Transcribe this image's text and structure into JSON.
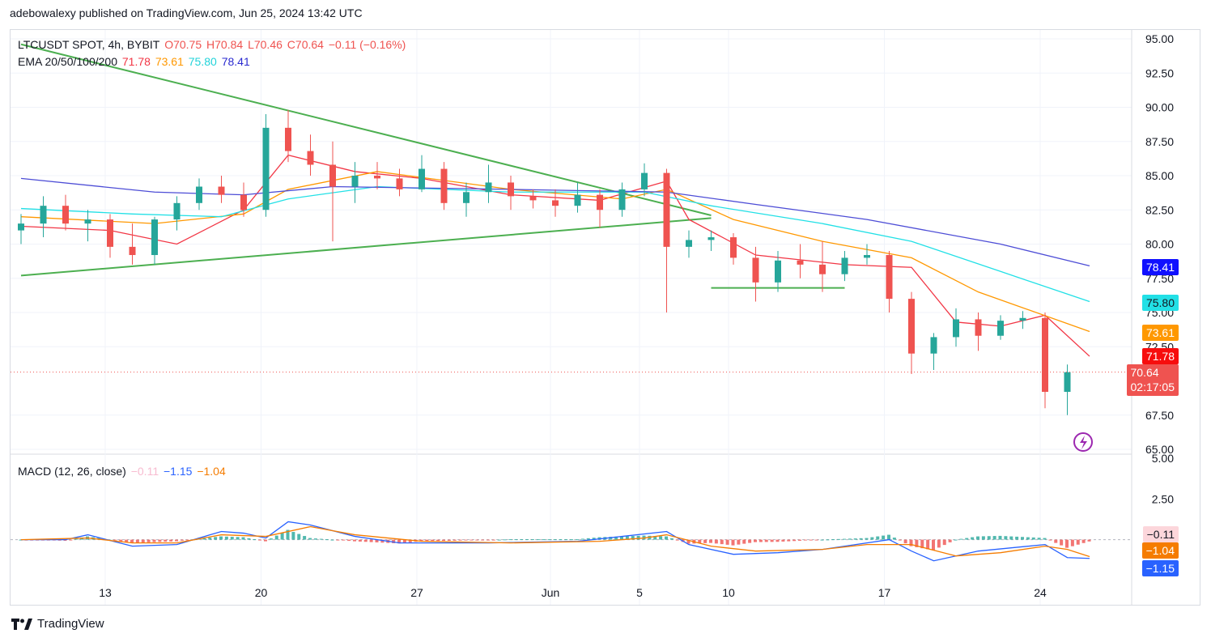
{
  "header": {
    "publisher_line": "adebowalexy published on TradingView.com, Jun 25, 2024 13:42 UTC"
  },
  "legend": {
    "symbol": "LTCUSDT SPOT, 4h, BYBIT",
    "o": "O70.75",
    "h": "H70.84",
    "l": "L70.46",
    "c": "C70.64",
    "change": "−0.11 (−0.16%)",
    "ema_label": "EMA 20/50/100/200",
    "ema20": "71.78",
    "ema50": "73.61",
    "ema100": "75.80",
    "ema200": "78.41"
  },
  "macd_legend": {
    "label": "MACD (12, 26, close)",
    "hist": "−0.11",
    "macd": "−1.15",
    "signal": "−1.04"
  },
  "badges": {
    "ema200": "78.41",
    "ema100": "75.80",
    "ema50": "73.61",
    "ema20": "71.78",
    "price": "70.64",
    "countdown": "02:17:05",
    "macd_hist": "−0.11",
    "macd_signal": "−1.04",
    "macd_line": "−1.15"
  },
  "footer": {
    "brand": "TradingView"
  },
  "colors": {
    "up": "#26a69a",
    "down": "#ef5350",
    "ema20": "#f23645",
    "ema50": "#ff9800",
    "ema100": "#22e0e6",
    "ema200": "#4d4dd6",
    "trend": "#4caf50",
    "macd": "#2962ff",
    "signal": "#f57c00"
  },
  "chart_data": {
    "type": "candlestick",
    "price_axis": {
      "ticks": [
        "95.00",
        "92.50",
        "90.00",
        "87.50",
        "85.00",
        "82.50",
        "80.00",
        "77.50",
        "75.00",
        "72.50",
        "67.50",
        "65.00"
      ],
      "range": [
        65,
        95
      ]
    },
    "macd_axis": {
      "ticks": [
        "5.00",
        "2.50"
      ],
      "range": [
        -3.5,
        5
      ]
    },
    "time_axis": {
      "labels": [
        "13",
        "20",
        "27",
        "Jun",
        "5",
        "10",
        "17",
        "24"
      ]
    },
    "candles": [
      [
        "2024-05-09",
        81.0,
        82.2,
        80.0,
        81.5
      ],
      [
        "2024-05-10",
        81.5,
        83.5,
        80.5,
        82.8
      ],
      [
        "2024-05-11",
        82.8,
        83.6,
        81.0,
        81.5
      ],
      [
        "2024-05-12",
        81.5,
        82.5,
        80.2,
        81.8
      ],
      [
        "2024-05-13",
        81.8,
        82.2,
        79.0,
        79.8
      ],
      [
        "2024-05-14",
        79.8,
        81.5,
        78.5,
        79.2
      ],
      [
        "2024-05-15",
        79.2,
        82.0,
        78.5,
        81.8
      ],
      [
        "2024-05-16",
        81.8,
        83.5,
        81.0,
        83.0
      ],
      [
        "2024-05-17",
        83.0,
        84.8,
        82.5,
        84.2
      ],
      [
        "2024-05-18",
        84.2,
        85.0,
        83.0,
        83.6
      ],
      [
        "2024-05-19",
        83.6,
        84.5,
        82.0,
        82.5
      ],
      [
        "2024-05-20",
        82.5,
        89.5,
        82.0,
        88.5
      ],
      [
        "2024-05-21",
        88.5,
        89.8,
        86.0,
        86.8
      ],
      [
        "2024-05-22",
        86.8,
        88.0,
        85.0,
        85.8
      ],
      [
        "2024-05-23",
        85.8,
        87.5,
        80.2,
        84.2
      ],
      [
        "2024-05-24",
        84.2,
        86.0,
        83.0,
        85.0
      ],
      [
        "2024-05-25",
        85.0,
        86.0,
        84.0,
        84.8
      ],
      [
        "2024-05-26",
        84.8,
        85.5,
        83.5,
        84.0
      ],
      [
        "2024-05-27",
        84.0,
        86.5,
        83.8,
        85.5
      ],
      [
        "2024-05-28",
        85.5,
        86.0,
        82.5,
        83.0
      ],
      [
        "2024-05-29",
        83.0,
        84.5,
        82.0,
        83.8
      ],
      [
        "2024-05-30",
        83.8,
        85.8,
        83.0,
        84.5
      ],
      [
        "2024-05-31",
        84.5,
        85.0,
        82.5,
        83.5
      ],
      [
        "2024-06-01",
        83.5,
        84.0,
        82.6,
        83.2
      ],
      [
        "2024-06-02",
        83.2,
        84.0,
        82.0,
        82.8
      ],
      [
        "2024-06-03",
        82.8,
        84.5,
        82.3,
        83.6
      ],
      [
        "2024-06-04",
        83.6,
        84.0,
        81.2,
        82.5
      ],
      [
        "2024-06-05",
        82.5,
        84.5,
        82.0,
        84.0
      ],
      [
        "2024-06-06",
        84.0,
        85.9,
        83.5,
        85.2
      ],
      [
        "2024-06-07",
        85.2,
        85.5,
        75.0,
        79.8
      ],
      [
        "2024-06-08",
        79.8,
        81.0,
        79.0,
        80.3
      ],
      [
        "2024-06-09",
        80.3,
        81.0,
        79.5,
        80.5
      ],
      [
        "2024-06-10",
        80.5,
        80.8,
        78.5,
        79.0
      ],
      [
        "2024-06-11",
        79.0,
        79.8,
        75.8,
        77.2
      ],
      [
        "2024-06-12",
        77.2,
        79.5,
        76.5,
        78.8
      ],
      [
        "2024-06-13",
        78.8,
        80.0,
        77.5,
        78.5
      ],
      [
        "2024-06-14",
        78.5,
        80.2,
        76.5,
        77.8
      ],
      [
        "2024-06-15",
        77.8,
        79.5,
        77.3,
        79.0
      ],
      [
        "2024-06-16",
        79.0,
        80.0,
        78.5,
        79.2
      ],
      [
        "2024-06-17",
        79.2,
        79.5,
        75.0,
        76.0
      ],
      [
        "2024-06-18",
        76.0,
        76.5,
        70.5,
        72.0
      ],
      [
        "2024-06-19",
        72.0,
        73.5,
        70.8,
        73.2
      ],
      [
        "2024-06-20",
        73.2,
        75.3,
        72.5,
        74.5
      ],
      [
        "2024-06-21",
        74.5,
        75.0,
        72.2,
        73.3
      ],
      [
        "2024-06-22",
        73.3,
        74.8,
        73.0,
        74.4
      ],
      [
        "2024-06-23",
        74.4,
        75.1,
        73.8,
        74.6
      ],
      [
        "2024-06-24",
        74.6,
        75.0,
        68.0,
        69.2
      ],
      [
        "2024-06-25",
        69.2,
        71.2,
        67.5,
        70.64
      ]
    ],
    "ema": [
      {
        "name": "EMA 20",
        "color": "#f23645",
        "values": [
          [
            0,
            81.3
          ],
          [
            4,
            81.0
          ],
          [
            7,
            80.0
          ],
          [
            10,
            82.5
          ],
          [
            12,
            86.5
          ],
          [
            15,
            85.3
          ],
          [
            18,
            84.8
          ],
          [
            22,
            83.6
          ],
          [
            26,
            83.2
          ],
          [
            29,
            84.6
          ],
          [
            30,
            81.8
          ],
          [
            33,
            79.2
          ],
          [
            37,
            78.5
          ],
          [
            40,
            78.3
          ],
          [
            42,
            74.3
          ],
          [
            44,
            74.0
          ],
          [
            46,
            74.8
          ],
          [
            48,
            71.8
          ]
        ]
      },
      {
        "name": "EMA 50",
        "color": "#ff9800",
        "values": [
          [
            0,
            82.0
          ],
          [
            6,
            81.5
          ],
          [
            10,
            82.2
          ],
          [
            12,
            84.0
          ],
          [
            16,
            85.3
          ],
          [
            22,
            84.0
          ],
          [
            27,
            83.3
          ],
          [
            29,
            84.0
          ],
          [
            32,
            81.8
          ],
          [
            36,
            80.2
          ],
          [
            40,
            79.0
          ],
          [
            43,
            76.5
          ],
          [
            48,
            73.61
          ]
        ]
      },
      {
        "name": "EMA 100",
        "color": "#22e0e6",
        "values": [
          [
            0,
            82.6
          ],
          [
            5,
            82.2
          ],
          [
            9,
            82.0
          ],
          [
            12,
            83.3
          ],
          [
            16,
            84.2
          ],
          [
            22,
            83.8
          ],
          [
            28,
            83.8
          ],
          [
            31,
            82.8
          ],
          [
            36,
            81.5
          ],
          [
            40,
            80.2
          ],
          [
            44,
            78.0
          ],
          [
            48,
            75.8
          ]
        ]
      },
      {
        "name": "EMA 200",
        "color": "#4d4dd6",
        "values": [
          [
            0,
            84.8
          ],
          [
            6,
            83.8
          ],
          [
            10,
            83.6
          ],
          [
            14,
            84.2
          ],
          [
            22,
            84.0
          ],
          [
            29,
            83.8
          ],
          [
            33,
            82.9
          ],
          [
            38,
            81.8
          ],
          [
            44,
            80.0
          ],
          [
            48,
            78.41
          ]
        ]
      }
    ],
    "trendlines": [
      {
        "from": [
          "2024-05-09",
          94.6
        ],
        "to": [
          "2024-06-09",
          82.1
        ]
      },
      {
        "from": [
          "2024-05-09",
          77.7
        ],
        "to": [
          "2024-06-09",
          81.9
        ]
      },
      {
        "from": [
          "2024-06-09",
          76.8
        ],
        "to": [
          "2024-06-15",
          76.8
        ]
      }
    ],
    "macd": {
      "macd_line": [
        [
          0,
          0
        ],
        [
          2,
          0
        ],
        [
          3,
          0.3
        ],
        [
          5,
          -0.4
        ],
        [
          7,
          -0.3
        ],
        [
          9,
          0.5
        ],
        [
          10,
          0.4
        ],
        [
          11,
          0.1
        ],
        [
          12,
          1.1
        ],
        [
          13,
          0.9
        ],
        [
          15,
          0.2
        ],
        [
          17,
          -0.2
        ],
        [
          21,
          -0.2
        ],
        [
          25,
          -0.1
        ],
        [
          27,
          0.2
        ],
        [
          29,
          0.5
        ],
        [
          30,
          -0.3
        ],
        [
          32,
          -0.9
        ],
        [
          34,
          -0.8
        ],
        [
          36,
          -0.6
        ],
        [
          37,
          -0.4
        ],
        [
          39,
          0.0
        ],
        [
          40,
          -0.7
        ],
        [
          41,
          -1.3
        ],
        [
          43,
          -0.7
        ],
        [
          46,
          -0.3
        ],
        [
          47,
          -1.1
        ],
        [
          48,
          -1.15
        ]
      ],
      "signal_line": [
        [
          0,
          0
        ],
        [
          3,
          0.1
        ],
        [
          5,
          -0.2
        ],
        [
          7,
          -0.2
        ],
        [
          9,
          0.3
        ],
        [
          11,
          0.2
        ],
        [
          13,
          0.8
        ],
        [
          15,
          0.3
        ],
        [
          18,
          -0.1
        ],
        [
          22,
          -0.2
        ],
        [
          26,
          -0.1
        ],
        [
          28,
          0.1
        ],
        [
          29,
          0.3
        ],
        [
          31,
          -0.4
        ],
        [
          33,
          -0.7
        ],
        [
          36,
          -0.6
        ],
        [
          38,
          -0.3
        ],
        [
          40,
          -0.3
        ],
        [
          42,
          -1.0
        ],
        [
          44,
          -0.8
        ],
        [
          46,
          -0.4
        ],
        [
          47,
          -0.6
        ],
        [
          48,
          -1.04
        ]
      ],
      "hist_last": -0.11
    }
  }
}
